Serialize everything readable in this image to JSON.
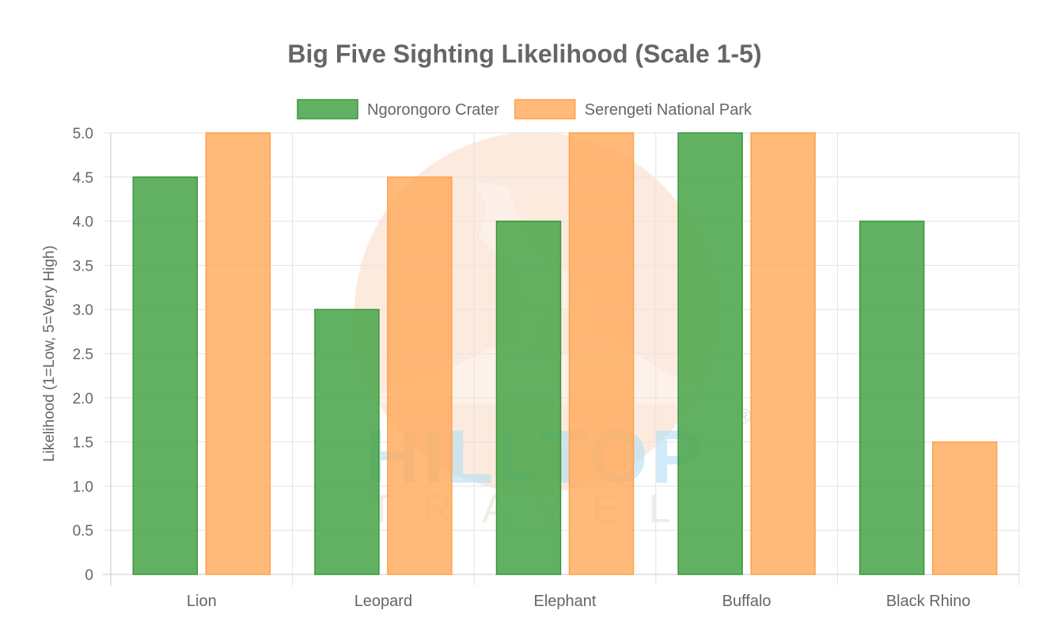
{
  "chart_data": {
    "type": "bar",
    "title": "Big Five Sighting Likelihood (Scale 1-5)",
    "xlabel": "",
    "ylabel": "Likelihood (1=Low, 5=Very High)",
    "ylim": [
      0,
      5
    ],
    "ytick_step": 0.5,
    "y_ticks": [
      "0",
      "0.5",
      "1.0",
      "1.5",
      "2.0",
      "2.5",
      "3.0",
      "3.5",
      "4.0",
      "4.5",
      "5.0"
    ],
    "grid": true,
    "legend_position": "top-center",
    "categories": [
      "Lion",
      "Leopard",
      "Elephant",
      "Buffalo",
      "Black Rhino"
    ],
    "series": [
      {
        "name": "Ngorongoro Crater",
        "values": [
          4.5,
          3.0,
          4.0,
          5.0,
          4.0
        ],
        "color": "#4CA64C",
        "border_color": "#3A963A"
      },
      {
        "name": "Serengeti National Park",
        "values": [
          5.0,
          4.5,
          5.0,
          5.0,
          1.5
        ],
        "color": "#FFAA5C",
        "border_color": "#FFA24A"
      }
    ]
  },
  "watermark": {
    "brand": "HILLTOP",
    "tagline": "TRAVEL",
    "registered": "®",
    "sun_color": "#FBD9C5",
    "brand_color": "#A8DCF2"
  }
}
